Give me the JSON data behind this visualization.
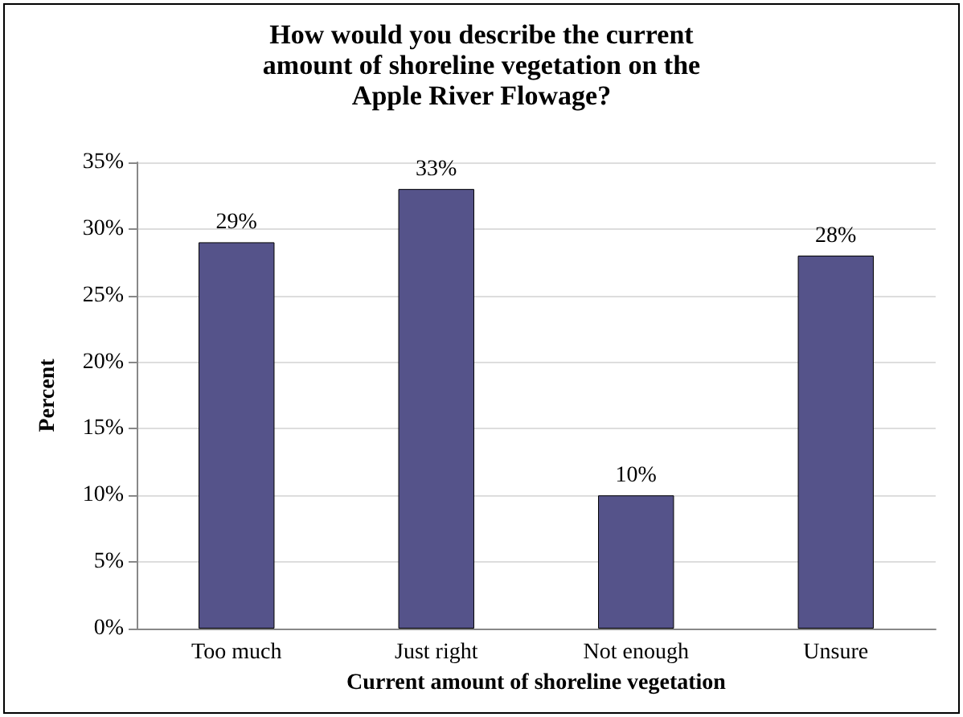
{
  "chart_data": {
    "type": "bar",
    "title": "How would you describe the current\namount of shoreline vegetation on the\nApple River Flowage?",
    "xlabel": "Current amount of shoreline vegetation",
    "ylabel": "Percent",
    "categories": [
      "Too much",
      "Just right",
      "Not enough",
      "Unsure"
    ],
    "values": [
      29,
      33,
      10,
      28
    ],
    "value_labels": [
      "29%",
      "33%",
      "10%",
      "28%"
    ],
    "color": "#55538a",
    "ylim": [
      0,
      35
    ],
    "yticks": [
      {
        "value": 0,
        "label": "0%"
      },
      {
        "value": 5,
        "label": "5%"
      },
      {
        "value": 10,
        "label": "10%"
      },
      {
        "value": 15,
        "label": "15%"
      },
      {
        "value": 20,
        "label": "20%"
      },
      {
        "value": 25,
        "label": "25%"
      },
      {
        "value": 30,
        "label": "30%"
      },
      {
        "value": 35,
        "label": "35%"
      }
    ],
    "grid": "y"
  }
}
